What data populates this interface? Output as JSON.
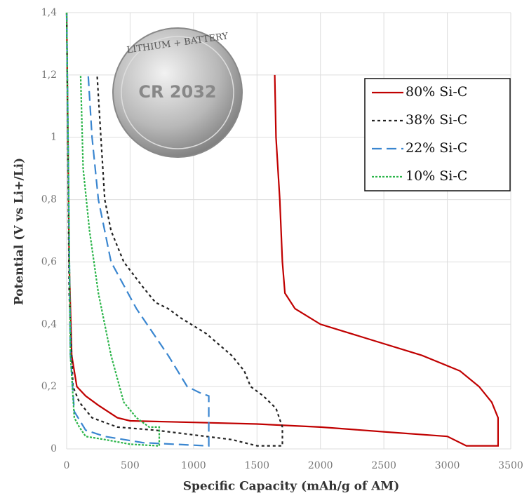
{
  "chart_data": {
    "type": "line",
    "xlabel": "Specific Capacity (mAh/g of AM)",
    "ylabel": "Potential (V vs Li+/Li)",
    "annotations": [
      "LITHIUM + BATTERY",
      "CR 2032"
    ],
    "xlim": [
      0,
      3500
    ],
    "xticks": [
      0,
      500,
      1000,
      1500,
      2000,
      2500,
      3000,
      3500
    ],
    "ylim": [
      0,
      1.4
    ],
    "yticks": [
      0,
      {
        "value": 0.2,
        "label": "0,2"
      },
      {
        "value": 0.4,
        "label": "0,4"
      },
      {
        "value": 0.6,
        "label": "0,6"
      },
      {
        "value": 0.8,
        "label": "0,8"
      },
      1,
      {
        "value": 1.2,
        "label": "1,2"
      },
      {
        "value": 1.4,
        "label": "1,4"
      }
    ],
    "grid": true,
    "legend": "upper right",
    "series": [
      {
        "name": "80% Si-C",
        "color": "#c00000",
        "dash": "none",
        "x": [
          0,
          20,
          40,
          80,
          150,
          250,
          400,
          500,
          1000,
          1500,
          2000,
          2500,
          3000,
          3150,
          3400,
          3400,
          3350,
          3250,
          3100,
          2800,
          2400,
          2000,
          1800,
          1720,
          1700,
          1680,
          1650,
          1640
        ],
        "values": [
          1.4,
          0.6,
          0.3,
          0.2,
          0.17,
          0.14,
          0.1,
          0.09,
          0.085,
          0.08,
          0.07,
          0.055,
          0.04,
          0.01,
          0.01,
          0.1,
          0.15,
          0.2,
          0.25,
          0.3,
          0.35,
          0.4,
          0.45,
          0.5,
          0.6,
          0.8,
          1.0,
          1.2
        ]
      },
      {
        "name": "38% Si-C",
        "color": "#222222",
        "dash": "4,4",
        "x": [
          0,
          20,
          50,
          100,
          200,
          400,
          700,
          1000,
          1300,
          1500,
          1700,
          1700,
          1650,
          1550,
          1450,
          1400,
          1300,
          1100,
          900,
          800,
          700,
          600,
          450,
          350,
          300,
          270,
          240
        ],
        "values": [
          1.4,
          0.5,
          0.2,
          0.15,
          0.1,
          0.07,
          0.06,
          0.045,
          0.03,
          0.01,
          0.01,
          0.07,
          0.13,
          0.17,
          0.2,
          0.25,
          0.3,
          0.37,
          0.42,
          0.45,
          0.47,
          0.52,
          0.6,
          0.7,
          0.8,
          1.0,
          1.2
        ]
      },
      {
        "name": "22% Si-C",
        "color": "#3a86d0",
        "dash": "14,7",
        "x": [
          0,
          30,
          60,
          150,
          300,
          600,
          1100,
          1120,
          1120,
          1050,
          950,
          800,
          550,
          350,
          250,
          200,
          170
        ],
        "values": [
          1.4,
          0.3,
          0.12,
          0.06,
          0.04,
          0.02,
          0.01,
          0.01,
          0.17,
          0.18,
          0.2,
          0.3,
          0.45,
          0.6,
          0.8,
          1.0,
          1.2
        ]
      },
      {
        "name": "10% Si-C",
        "color": "#2cb54a",
        "dash": "3,2",
        "x": [
          0,
          30,
          60,
          100,
          150,
          300,
          500,
          720,
          730,
          730,
          650,
          550,
          450,
          350,
          250,
          180,
          130,
          110
        ],
        "values": [
          1.4,
          0.3,
          0.1,
          0.07,
          0.04,
          0.03,
          0.015,
          0.01,
          0.01,
          0.07,
          0.07,
          0.1,
          0.15,
          0.3,
          0.5,
          0.7,
          0.9,
          1.2
        ]
      }
    ]
  }
}
